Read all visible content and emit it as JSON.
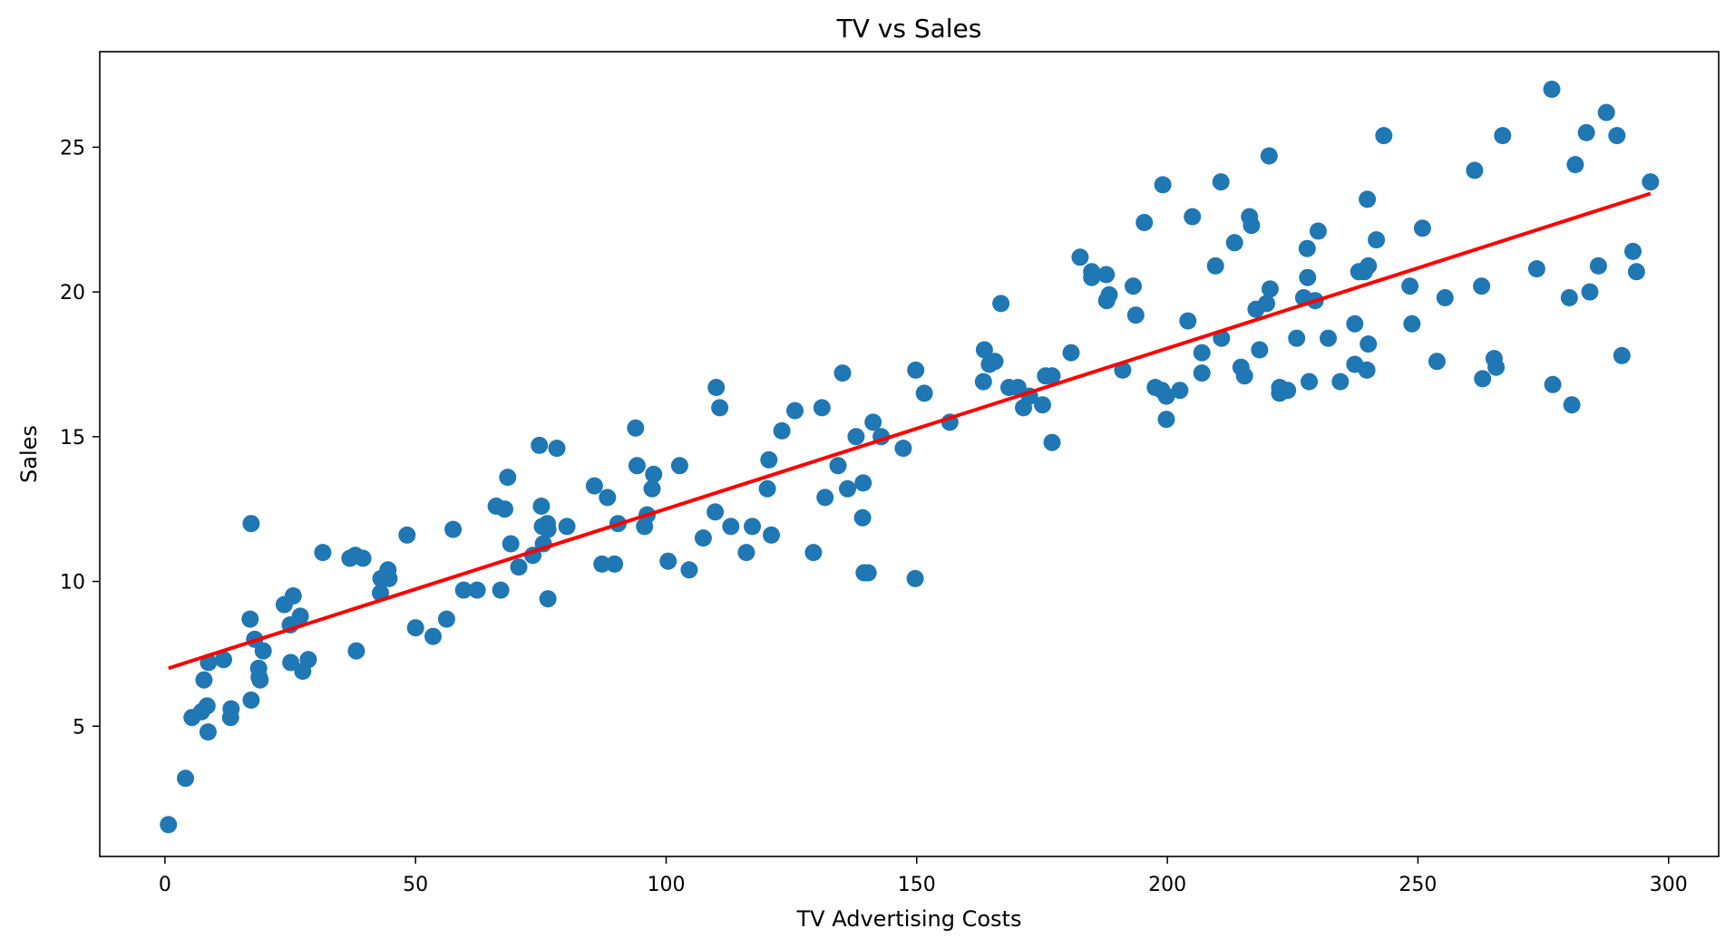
{
  "chart_data": {
    "type": "scatter",
    "title": "TV vs Sales",
    "xlabel": "TV Advertising Costs",
    "ylabel": "Sales",
    "xlim": [
      -13,
      310
    ],
    "ylim": [
      0.5,
      28.3
    ],
    "xticks": [
      0,
      50,
      100,
      150,
      200,
      250,
      300
    ],
    "yticks": [
      5,
      10,
      15,
      20,
      25
    ],
    "grid": false,
    "colors": {
      "points": "#1f77b4",
      "fit_line": "#ff0000"
    },
    "series": [
      {
        "type": "scatter",
        "points": [
          [
            0.7,
            1.6
          ],
          [
            4.1,
            3.2
          ],
          [
            5.4,
            5.3
          ],
          [
            7.3,
            5.5
          ],
          [
            7.8,
            6.6
          ],
          [
            8.4,
            5.7
          ],
          [
            8.6,
            4.8
          ],
          [
            8.7,
            7.2
          ],
          [
            11.7,
            7.3
          ],
          [
            13.1,
            5.3
          ],
          [
            13.2,
            5.6
          ],
          [
            17.0,
            8.7
          ],
          [
            17.2,
            5.9
          ],
          [
            17.2,
            12.0
          ],
          [
            17.9,
            8.0
          ],
          [
            18.7,
            7.0
          ],
          [
            18.8,
            6.7
          ],
          [
            19.0,
            6.6
          ],
          [
            19.6,
            7.6
          ],
          [
            23.8,
            9.2
          ],
          [
            25.0,
            8.5
          ],
          [
            25.1,
            7.2
          ],
          [
            25.6,
            9.5
          ],
          [
            27.0,
            8.8
          ],
          [
            27.5,
            6.9
          ],
          [
            28.6,
            7.3
          ],
          [
            31.5,
            11.0
          ],
          [
            36.9,
            10.8
          ],
          [
            38.0,
            10.9
          ],
          [
            38.2,
            7.6
          ],
          [
            39.5,
            10.8
          ],
          [
            43.0,
            9.6
          ],
          [
            43.1,
            10.1
          ],
          [
            44.5,
            10.4
          ],
          [
            44.7,
            10.1
          ],
          [
            48.3,
            11.6
          ],
          [
            50.0,
            8.4
          ],
          [
            53.5,
            8.1
          ],
          [
            56.2,
            8.7
          ],
          [
            57.5,
            11.8
          ],
          [
            59.6,
            9.7
          ],
          [
            62.3,
            9.7
          ],
          [
            66.1,
            12.6
          ],
          [
            67.0,
            9.7
          ],
          [
            67.8,
            12.5
          ],
          [
            68.4,
            13.6
          ],
          [
            69.0,
            11.3
          ],
          [
            70.6,
            10.5
          ],
          [
            73.4,
            10.9
          ],
          [
            74.7,
            14.7
          ],
          [
            75.1,
            12.6
          ],
          [
            75.3,
            11.9
          ],
          [
            75.5,
            11.3
          ],
          [
            76.3,
            12.0
          ],
          [
            76.4,
            11.8
          ],
          [
            76.4,
            9.4
          ],
          [
            78.2,
            14.6
          ],
          [
            80.2,
            11.9
          ],
          [
            85.7,
            13.3
          ],
          [
            87.2,
            10.6
          ],
          [
            88.3,
            12.9
          ],
          [
            89.7,
            10.6
          ],
          [
            90.4,
            12.0
          ],
          [
            93.9,
            15.3
          ],
          [
            94.2,
            14.0
          ],
          [
            95.7,
            11.9
          ],
          [
            96.2,
            12.3
          ],
          [
            97.2,
            13.2
          ],
          [
            97.5,
            13.7
          ],
          [
            100.4,
            10.7
          ],
          [
            102.7,
            14.0
          ],
          [
            104.6,
            10.4
          ],
          [
            107.4,
            11.5
          ],
          [
            109.8,
            12.4
          ],
          [
            110.0,
            16.7
          ],
          [
            110.7,
            16.0
          ],
          [
            112.9,
            11.9
          ],
          [
            116.0,
            11.0
          ],
          [
            117.2,
            11.9
          ],
          [
            120.2,
            13.2
          ],
          [
            120.5,
            14.2
          ],
          [
            121.0,
            11.6
          ],
          [
            123.1,
            15.2
          ],
          [
            125.7,
            15.9
          ],
          [
            129.4,
            11.0
          ],
          [
            131.1,
            16.0
          ],
          [
            131.7,
            12.9
          ],
          [
            134.3,
            14.0
          ],
          [
            135.2,
            17.2
          ],
          [
            136.2,
            13.2
          ],
          [
            137.9,
            15.0
          ],
          [
            139.2,
            12.2
          ],
          [
            139.3,
            13.4
          ],
          [
            139.5,
            10.3
          ],
          [
            140.3,
            10.3
          ],
          [
            141.3,
            15.5
          ],
          [
            142.9,
            15.0
          ],
          [
            147.3,
            14.6
          ],
          [
            149.7,
            10.1
          ],
          [
            149.8,
            17.3
          ],
          [
            151.5,
            16.5
          ],
          [
            156.6,
            15.5
          ],
          [
            163.3,
            16.9
          ],
          [
            163.5,
            18.0
          ],
          [
            164.5,
            17.5
          ],
          [
            165.6,
            17.6
          ],
          [
            166.8,
            19.6
          ],
          [
            168.4,
            16.7
          ],
          [
            170.2,
            16.7
          ],
          [
            171.3,
            16.0
          ],
          [
            172.5,
            16.4
          ],
          [
            175.1,
            16.1
          ],
          [
            175.7,
            17.1
          ],
          [
            177.0,
            14.8
          ],
          [
            177.0,
            17.1
          ],
          [
            180.8,
            17.9
          ],
          [
            182.6,
            21.2
          ],
          [
            184.9,
            20.7
          ],
          [
            184.9,
            20.5
          ],
          [
            187.8,
            20.6
          ],
          [
            187.9,
            19.7
          ],
          [
            188.4,
            19.9
          ],
          [
            191.1,
            17.3
          ],
          [
            193.2,
            20.2
          ],
          [
            193.7,
            19.2
          ],
          [
            195.4,
            22.4
          ],
          [
            197.6,
            16.7
          ],
          [
            198.9,
            16.6
          ],
          [
            199.1,
            23.7
          ],
          [
            199.8,
            16.4
          ],
          [
            199.8,
            15.6
          ],
          [
            202.5,
            16.6
          ],
          [
            204.1,
            19.0
          ],
          [
            205.0,
            22.6
          ],
          [
            206.9,
            17.9
          ],
          [
            206.9,
            17.2
          ],
          [
            209.6,
            20.9
          ],
          [
            210.7,
            23.8
          ],
          [
            210.8,
            18.4
          ],
          [
            213.4,
            21.7
          ],
          [
            214.7,
            17.4
          ],
          [
            215.4,
            17.1
          ],
          [
            216.4,
            22.6
          ],
          [
            216.8,
            22.3
          ],
          [
            217.7,
            19.4
          ],
          [
            218.4,
            18.0
          ],
          [
            219.8,
            19.6
          ],
          [
            220.3,
            24.7
          ],
          [
            220.5,
            20.1
          ],
          [
            222.4,
            16.7
          ],
          [
            222.4,
            16.5
          ],
          [
            224.0,
            16.6
          ],
          [
            225.8,
            18.4
          ],
          [
            227.2,
            19.8
          ],
          [
            227.9,
            21.5
          ],
          [
            228.0,
            20.5
          ],
          [
            228.3,
            16.9
          ],
          [
            229.5,
            19.7
          ],
          [
            230.1,
            22.1
          ],
          [
            232.1,
            18.4
          ],
          [
            234.5,
            16.9
          ],
          [
            237.4,
            18.9
          ],
          [
            237.4,
            17.5
          ],
          [
            238.2,
            20.7
          ],
          [
            239.3,
            20.7
          ],
          [
            239.8,
            17.3
          ],
          [
            239.9,
            23.2
          ],
          [
            240.1,
            18.2
          ],
          [
            240.1,
            20.9
          ],
          [
            241.7,
            21.8
          ],
          [
            243.2,
            25.4
          ],
          [
            248.4,
            20.2
          ],
          [
            248.8,
            18.9
          ],
          [
            250.9,
            22.2
          ],
          [
            253.8,
            17.6
          ],
          [
            255.4,
            19.8
          ],
          [
            261.3,
            24.2
          ],
          [
            262.7,
            20.2
          ],
          [
            262.9,
            17.0
          ],
          [
            265.2,
            17.7
          ],
          [
            265.6,
            17.4
          ],
          [
            266.9,
            25.4
          ],
          [
            273.7,
            20.8
          ],
          [
            276.7,
            27.0
          ],
          [
            276.9,
            16.8
          ],
          [
            280.2,
            19.8
          ],
          [
            280.7,
            16.1
          ],
          [
            281.4,
            24.4
          ],
          [
            283.6,
            25.5
          ],
          [
            284.3,
            20.0
          ],
          [
            286.0,
            20.9
          ],
          [
            287.6,
            26.2
          ],
          [
            289.7,
            25.4
          ],
          [
            290.7,
            17.8
          ],
          [
            292.9,
            21.4
          ],
          [
            293.6,
            20.7
          ],
          [
            296.4,
            23.8
          ]
        ]
      },
      {
        "type": "line",
        "points": [
          [
            0.7,
            7.0
          ],
          [
            296.4,
            23.4
          ]
        ]
      }
    ]
  }
}
